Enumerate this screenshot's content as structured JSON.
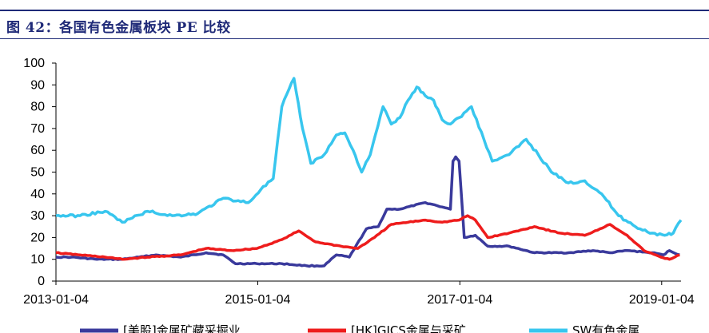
{
  "header": {
    "title": "图 42：各国有色金属板块 PE 比较"
  },
  "colors": {
    "navy": "#1f2a78",
    "us": "#3a3a9c",
    "hk": "#ee1c1c",
    "sw": "#38c6ee"
  },
  "chart_data": {
    "type": "line",
    "title": "图 42：各国有色金属板块 PE 比较",
    "xlabel": "",
    "ylabel": "",
    "ylim": [
      0,
      100
    ],
    "yticks": [
      0,
      10,
      20,
      30,
      40,
      50,
      60,
      70,
      80,
      90,
      100
    ],
    "xrange": [
      "2013-01-04",
      "2019-03-15"
    ],
    "xticks": [
      "2013-01-04",
      "2015-01-04",
      "2017-01-04",
      "2019-01-04"
    ],
    "legend_position": "bottom",
    "series": [
      {
        "name": "[美股]金属矿藏采掘业",
        "key": "us",
        "points": [
          [
            "2013-01-04",
            11
          ],
          [
            "2013-03-01",
            11
          ],
          [
            "2013-06-01",
            10
          ],
          [
            "2013-09-01",
            10
          ],
          [
            "2013-11-01",
            11
          ],
          [
            "2014-01-01",
            12
          ],
          [
            "2014-04-01",
            11
          ],
          [
            "2014-07-01",
            13
          ],
          [
            "2014-09-01",
            12
          ],
          [
            "2014-10-15",
            8
          ],
          [
            "2015-01-01",
            8
          ],
          [
            "2015-04-01",
            8
          ],
          [
            "2015-07-01",
            7
          ],
          [
            "2015-09-01",
            7
          ],
          [
            "2015-10-15",
            12
          ],
          [
            "2015-12-01",
            11
          ],
          [
            "2016-02-01",
            24
          ],
          [
            "2016-03-15",
            25
          ],
          [
            "2016-04-15",
            33
          ],
          [
            "2016-06-01",
            33
          ],
          [
            "2016-09-01",
            36
          ],
          [
            "2016-11-01",
            34
          ],
          [
            "2016-12-01",
            33
          ],
          [
            "2016-12-10",
            55
          ],
          [
            "2016-12-20",
            57
          ],
          [
            "2017-01-01",
            55
          ],
          [
            "2017-01-20",
            20
          ],
          [
            "2017-03-01",
            21
          ],
          [
            "2017-04-15",
            16
          ],
          [
            "2017-07-01",
            16
          ],
          [
            "2017-10-01",
            13
          ],
          [
            "2018-02-01",
            13
          ],
          [
            "2018-05-01",
            14
          ],
          [
            "2018-07-01",
            13
          ],
          [
            "2018-09-01",
            14
          ],
          [
            "2018-12-01",
            13
          ],
          [
            "2019-01-10",
            12
          ],
          [
            "2019-02-01",
            14
          ],
          [
            "2019-03-10",
            12
          ]
        ]
      },
      {
        "name": "[HK]GICS金属与采矿",
        "key": "hk",
        "points": [
          [
            "2013-01-04",
            13
          ],
          [
            "2013-04-01",
            12
          ],
          [
            "2013-07-01",
            11
          ],
          [
            "2013-09-01",
            10
          ],
          [
            "2013-12-01",
            11
          ],
          [
            "2014-04-01",
            12
          ],
          [
            "2014-07-01",
            15
          ],
          [
            "2014-10-01",
            14
          ],
          [
            "2015-01-01",
            15
          ],
          [
            "2015-04-01",
            19
          ],
          [
            "2015-06-01",
            23
          ],
          [
            "2015-08-01",
            18
          ],
          [
            "2015-11-01",
            16
          ],
          [
            "2016-01-01",
            15
          ],
          [
            "2016-03-01",
            20
          ],
          [
            "2016-05-01",
            26
          ],
          [
            "2016-07-01",
            27
          ],
          [
            "2016-09-01",
            28
          ],
          [
            "2016-11-01",
            27
          ],
          [
            "2017-01-01",
            28
          ],
          [
            "2017-02-01",
            30
          ],
          [
            "2017-03-01",
            28
          ],
          [
            "2017-04-15",
            20
          ],
          [
            "2017-07-01",
            22
          ],
          [
            "2017-10-01",
            25
          ],
          [
            "2018-01-01",
            22
          ],
          [
            "2018-04-01",
            21
          ],
          [
            "2018-07-01",
            26
          ],
          [
            "2018-09-01",
            21
          ],
          [
            "2018-11-01",
            14
          ],
          [
            "2019-01-01",
            11
          ],
          [
            "2019-02-01",
            10
          ],
          [
            "2019-03-10",
            12
          ]
        ]
      },
      {
        "name": "SW有色金属",
        "key": "sw",
        "points": [
          [
            "2013-01-04",
            30
          ],
          [
            "2013-04-01",
            30
          ],
          [
            "2013-07-01",
            32
          ],
          [
            "2013-09-01",
            27
          ],
          [
            "2013-12-01",
            32
          ],
          [
            "2014-03-01",
            30
          ],
          [
            "2014-06-01",
            31
          ],
          [
            "2014-09-01",
            38
          ],
          [
            "2014-12-01",
            36
          ],
          [
            "2015-01-15",
            42
          ],
          [
            "2015-03-01",
            47
          ],
          [
            "2015-04-01",
            80
          ],
          [
            "2015-05-15",
            93
          ],
          [
            "2015-06-15",
            70
          ],
          [
            "2015-07-15",
            54
          ],
          [
            "2015-09-01",
            58
          ],
          [
            "2015-10-15",
            67
          ],
          [
            "2015-11-15",
            68
          ],
          [
            "2015-12-15",
            60
          ],
          [
            "2016-01-15",
            50
          ],
          [
            "2016-02-15",
            58
          ],
          [
            "2016-04-01",
            80
          ],
          [
            "2016-05-01",
            72
          ],
          [
            "2016-06-01",
            75
          ],
          [
            "2016-07-01",
            83
          ],
          [
            "2016-08-01",
            89
          ],
          [
            "2016-09-01",
            85
          ],
          [
            "2016-10-01",
            83
          ],
          [
            "2016-11-01",
            74
          ],
          [
            "2016-12-01",
            72
          ],
          [
            "2017-01-01",
            75
          ],
          [
            "2017-02-15",
            80
          ],
          [
            "2017-04-01",
            65
          ],
          [
            "2017-05-01",
            55
          ],
          [
            "2017-07-01",
            58
          ],
          [
            "2017-09-01",
            65
          ],
          [
            "2017-10-15",
            58
          ],
          [
            "2017-12-01",
            50
          ],
          [
            "2018-02-01",
            45
          ],
          [
            "2018-04-01",
            46
          ],
          [
            "2018-06-01",
            40
          ],
          [
            "2018-08-01",
            30
          ],
          [
            "2018-10-01",
            25
          ],
          [
            "2018-12-01",
            22
          ],
          [
            "2019-01-15",
            21
          ],
          [
            "2019-02-15",
            22
          ],
          [
            "2019-03-15",
            28
          ]
        ]
      }
    ]
  }
}
